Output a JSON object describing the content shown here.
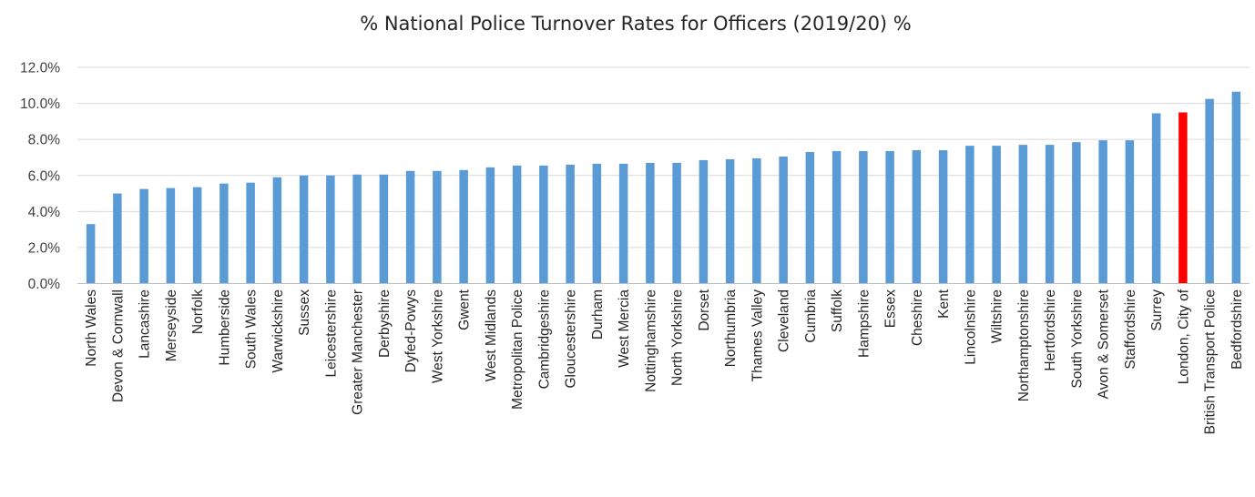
{
  "chart_data": {
    "type": "bar",
    "title": "% National Police Turnover Rates for Officers (2019/20) %",
    "xlabel": "",
    "ylabel": "",
    "ylim": [
      0,
      12
    ],
    "yticks": [
      "0.0%",
      "2.0%",
      "4.0%",
      "6.0%",
      "8.0%",
      "10.0%",
      "12.0%"
    ],
    "grid": true,
    "legend": "none",
    "colors": {
      "default": "#5b9bd5",
      "highlight": "#ff0000"
    },
    "highlight_category": "London, City of",
    "categories": [
      "North Wales",
      "Devon & Cornwall",
      "Lancashire",
      "Merseyside",
      "Norfolk",
      "Humberside",
      "South Wales",
      "Warwickshire",
      "Sussex",
      "Leicestershire",
      "Greater Manchester",
      "Derbyshire",
      "Dyfed-Powys",
      "West Yorkshire",
      "Gwent",
      "West Midlands",
      "Metropolitan Police",
      "Cambridgeshire",
      "Gloucestershire",
      "Durham",
      "West Mercia",
      "Nottinghamshire",
      "North Yorkshire",
      "Dorset",
      "Northumbria",
      "Thames Valley",
      "Cleveland",
      "Cumbria",
      "Suffolk",
      "Hampshire",
      "Essex",
      "Cheshire",
      "Kent",
      "Lincolnshire",
      "Wiltshire",
      "Northamptonshire",
      "Hertfordshire",
      "South Yorkshire",
      "Avon & Somerset",
      "Staffordshire",
      "Surrey",
      "London, City of",
      "British Transport Police",
      "Bedfordshire"
    ],
    "values": [
      3.3,
      5.0,
      5.25,
      5.3,
      5.35,
      5.55,
      5.6,
      5.9,
      6.0,
      6.0,
      6.05,
      6.05,
      6.25,
      6.25,
      6.3,
      6.45,
      6.55,
      6.55,
      6.6,
      6.65,
      6.65,
      6.7,
      6.7,
      6.85,
      6.9,
      6.95,
      7.05,
      7.3,
      7.35,
      7.35,
      7.35,
      7.4,
      7.4,
      7.65,
      7.65,
      7.7,
      7.7,
      7.85,
      7.95,
      7.95,
      9.45,
      9.5,
      10.25,
      10.65
    ]
  }
}
